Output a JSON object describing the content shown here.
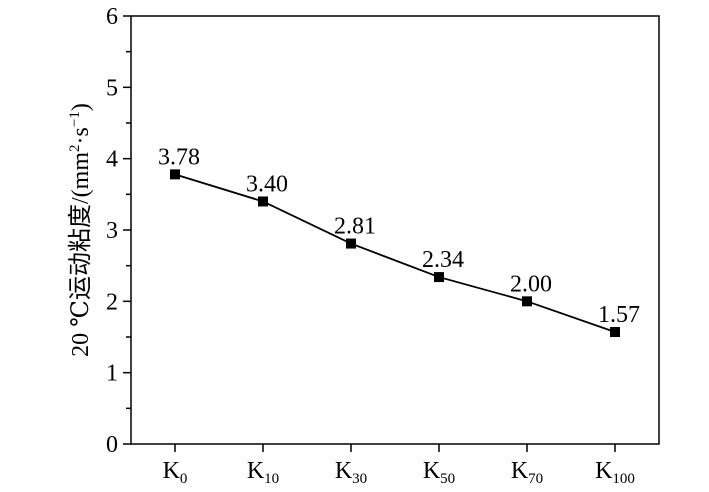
{
  "chart_data": {
    "type": "line",
    "categories": [
      {
        "base": "K",
        "sub": "0"
      },
      {
        "base": "K",
        "sub": "10"
      },
      {
        "base": "K",
        "sub": "30"
      },
      {
        "base": "K",
        "sub": "50"
      },
      {
        "base": "K",
        "sub": "70"
      },
      {
        "base": "K",
        "sub": "100"
      }
    ],
    "series": [
      {
        "values": [
          3.78,
          3.4,
          2.81,
          2.34,
          2.0,
          1.57
        ],
        "data_labels": [
          "3.78",
          "3.40",
          "2.81",
          "2.34",
          "2.00",
          "1.57"
        ],
        "marker": "square",
        "color": "#000000"
      }
    ],
    "ylabel": {
      "prefix": "20 ℃运动粘度/(mm",
      "sup1": "2",
      "middle": "·s",
      "sup2": "−1",
      "suffix": ")"
    },
    "xlabel": "",
    "ylim": [
      0,
      6
    ],
    "yticks": [
      "0",
      "1",
      "2",
      "3",
      "4",
      "5",
      "6"
    ],
    "grid": false,
    "legend": "none"
  }
}
